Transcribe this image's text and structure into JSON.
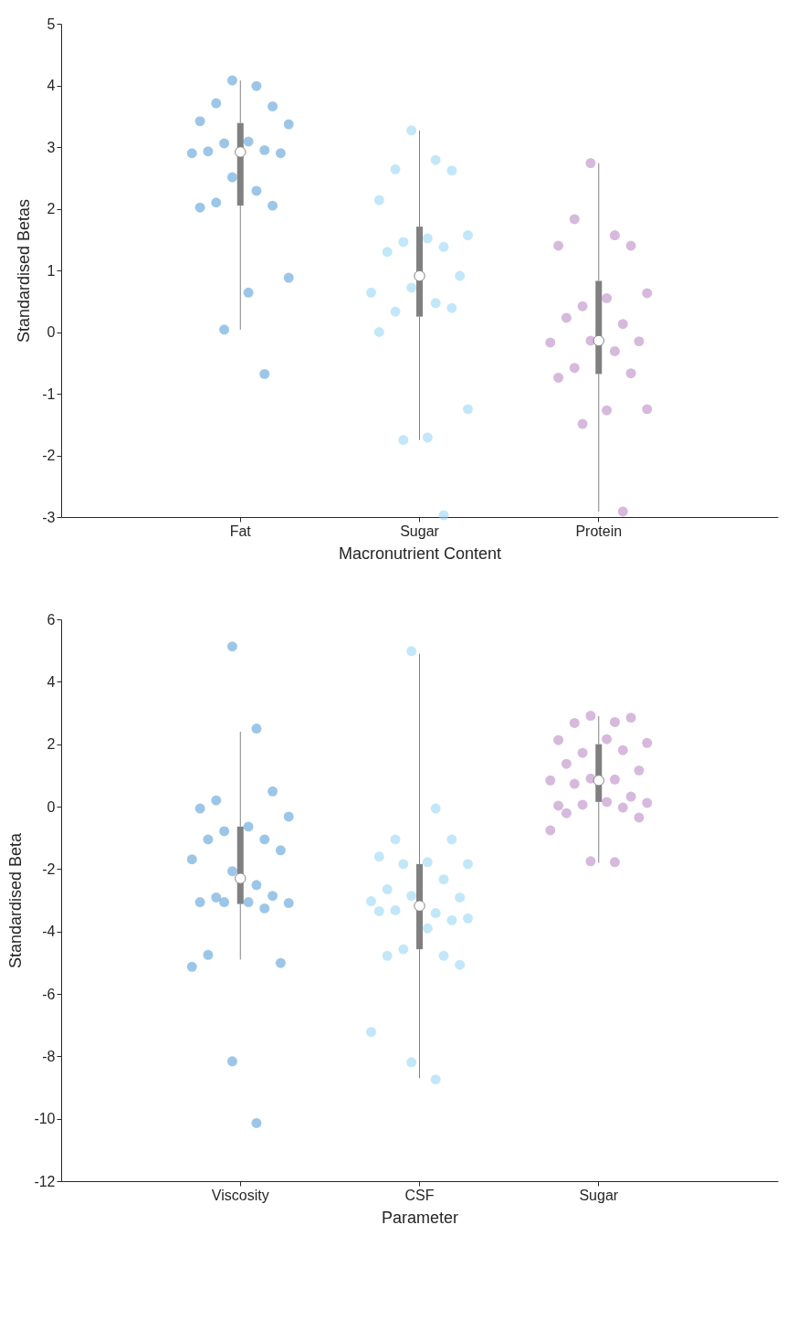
{
  "chart_data": [
    {
      "type": "box",
      "xlabel": "Macronutrient Content",
      "ylabel": "Standardised Betas",
      "categories": [
        "Fat",
        "Sugar",
        "Protein"
      ],
      "ylim": [
        -3,
        5
      ],
      "yticks": [
        -3,
        -2,
        -1,
        0,
        1,
        2,
        3,
        4,
        5
      ],
      "grid": false,
      "series": [
        {
          "type": "scatter",
          "color": "#4a98d6",
          "x": [
            "Fat",
            "Fat",
            "Fat",
            "Fat",
            "Fat",
            "Fat",
            "Fat",
            "Fat",
            "Fat",
            "Fat",
            "Fat",
            "Fat",
            "Fat",
            "Fat",
            "Fat",
            "Fat",
            "Fat",
            "Fat",
            "Fat",
            "Fat",
            "Fat"
          ],
          "values": [
            4.08,
            3.99,
            3.71,
            3.66,
            3.42,
            3.37,
            3.09,
            3.06,
            2.95,
            2.93,
            2.9,
            2.9,
            2.51,
            2.29,
            2.1,
            2.05,
            2.02,
            0.88,
            0.64,
            0.04,
            -0.68
          ]
        },
        {
          "type": "scatter",
          "color": "#8fd3f4",
          "x": [
            "Sugar",
            "Sugar",
            "Sugar",
            "Sugar",
            "Sugar",
            "Sugar",
            "Sugar",
            "Sugar",
            "Sugar",
            "Sugar",
            "Sugar",
            "Sugar",
            "Sugar",
            "Sugar",
            "Sugar",
            "Sugar",
            "Sugar",
            "Sugar",
            "Sugar",
            "Sugar",
            "Sugar"
          ],
          "values": [
            3.27,
            2.79,
            2.64,
            2.62,
            2.14,
            1.57,
            1.52,
            1.46,
            1.38,
            1.3,
            0.91,
            0.64,
            0.72,
            0.47,
            0.33,
            0.39,
            0.0,
            -1.25,
            -1.71,
            -1.75,
            -2.97
          ]
        },
        {
          "type": "scatter",
          "color": "#b57fc0",
          "x": [
            "Protein",
            "Protein",
            "Protein",
            "Protein",
            "Protein",
            "Protein",
            "Protein",
            "Protein",
            "Protein",
            "Protein",
            "Protein",
            "Protein",
            "Protein",
            "Protein",
            "Protein",
            "Protein",
            "Protein",
            "Protein",
            "Protein",
            "Protein",
            "Protein"
          ],
          "values": [
            2.74,
            1.57,
            1.83,
            1.4,
            1.4,
            0.63,
            0.55,
            0.42,
            0.13,
            0.23,
            -0.15,
            -0.17,
            -0.14,
            -0.31,
            -0.58,
            -0.67,
            -0.74,
            -1.25,
            -1.27,
            -1.49,
            -2.91
          ]
        },
        {
          "type": "box",
          "color": "#808080",
          "boxes": [
            {
              "low": 0.04,
              "q1": 2.05,
              "median": 2.92,
              "q3": 3.39,
              "high": 4.08
            },
            {
              "low": -1.75,
              "q1": 0.25,
              "median": 0.91,
              "q3": 1.71,
              "high": 3.27
            },
            {
              "low": -2.91,
              "q1": -0.68,
              "median": -0.14,
              "q3": 0.83,
              "high": 2.74
            }
          ]
        }
      ]
    },
    {
      "type": "box",
      "xlabel": "Parameter",
      "ylabel": "Standardised Beta",
      "categories": [
        "Viscosity",
        "CSF",
        "Sugar"
      ],
      "ylim": [
        -12,
        6
      ],
      "yticks": [
        -12,
        -10,
        -8,
        -6,
        -4,
        -2,
        0,
        2,
        4,
        6
      ],
      "grid": false,
      "series": [
        {
          "type": "scatter",
          "color": "#4a98d6",
          "x": [
            "Viscosity",
            "Viscosity",
            "Viscosity",
            "Viscosity",
            "Viscosity",
            "Viscosity",
            "Viscosity",
            "Viscosity",
            "Viscosity",
            "Viscosity",
            "Viscosity",
            "Viscosity",
            "Viscosity",
            "Viscosity",
            "Viscosity",
            "Viscosity",
            "Viscosity",
            "Viscosity",
            "Viscosity",
            "Viscosity",
            "Viscosity",
            "Viscosity",
            "Viscosity",
            "Viscosity",
            "Viscosity",
            "Viscosity"
          ],
          "values": [
            5.13,
            2.5,
            0.2,
            0.49,
            -0.06,
            -0.32,
            -0.64,
            -0.79,
            -1.05,
            -1.05,
            -1.4,
            -1.69,
            -2.07,
            -2.51,
            -2.91,
            -2.86,
            -3.06,
            -3.09,
            -3.06,
            -3.06,
            -3.26,
            -4.75,
            -5.01,
            -5.13,
            -8.16,
            -10.14
          ]
        },
        {
          "type": "scatter",
          "color": "#8fd3f4",
          "x": [
            "CSF",
            "CSF",
            "CSF",
            "CSF",
            "CSF",
            "CSF",
            "CSF",
            "CSF",
            "CSF",
            "CSF",
            "CSF",
            "CSF",
            "CSF",
            "CSF",
            "CSF",
            "CSF",
            "CSF",
            "CSF",
            "CSF",
            "CSF",
            "CSF",
            "CSF",
            "CSF",
            "CSF",
            "CSF",
            "CSF"
          ],
          "values": [
            4.98,
            -0.06,
            -1.05,
            -1.05,
            -1.6,
            -1.84,
            -1.78,
            -1.84,
            -2.33,
            -2.65,
            -2.91,
            -3.03,
            -2.86,
            -3.41,
            -3.32,
            -3.64,
            -3.35,
            -3.58,
            -3.9,
            -4.57,
            -4.78,
            -4.78,
            -5.07,
            -7.22,
            -8.19,
            -8.74
          ]
        },
        {
          "type": "scatter",
          "color": "#b57fc0",
          "x": [
            "Sugar",
            "Sugar",
            "Sugar",
            "Sugar",
            "Sugar",
            "Sugar",
            "Sugar",
            "Sugar",
            "Sugar",
            "Sugar",
            "Sugar",
            "Sugar",
            "Sugar",
            "Sugar",
            "Sugar",
            "Sugar",
            "Sugar",
            "Sugar",
            "Sugar",
            "Sugar",
            "Sugar",
            "Sugar",
            "Sugar",
            "Sugar",
            "Sugar",
            "Sugar"
          ],
          "values": [
            2.91,
            2.71,
            2.68,
            2.85,
            2.13,
            2.04,
            2.16,
            1.72,
            1.81,
            1.37,
            1.16,
            0.84,
            0.9,
            0.87,
            0.73,
            0.32,
            0.03,
            0.12,
            0.15,
            0.06,
            -0.03,
            -0.21,
            -0.35,
            -0.76,
            -1.75,
            -1.78
          ]
        },
        {
          "type": "box",
          "color": "#808080",
          "boxes": [
            {
              "low": -4.9,
              "q1": -3.12,
              "median": -2.3,
              "q3": -0.64,
              "high": 2.4
            },
            {
              "low": -8.7,
              "q1": -4.57,
              "median": -3.18,
              "q3": -1.84,
              "high": 4.9
            },
            {
              "low": -1.8,
              "q1": 0.15,
              "median": 0.84,
              "q3": 2.0,
              "high": 2.9
            }
          ]
        }
      ]
    }
  ]
}
